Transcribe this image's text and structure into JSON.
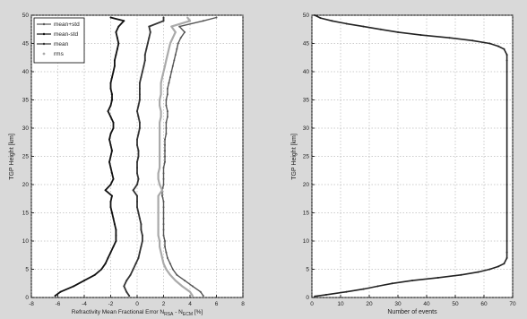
{
  "figure": {
    "background": "#d9d9d9",
    "axes_background": "#ffffff"
  },
  "chart_data": [
    {
      "type": "line",
      "panel": "left",
      "xlabel_main": "Refractivity Mean Fractional Error N",
      "xlabel_sub1": "RSA",
      "xlabel_mid": " - N",
      "xlabel_sub2": "ECM",
      "xlabel_tail": " [%]",
      "ylabel": "TGP Height [km]",
      "xlim": [
        -8,
        8
      ],
      "ylim": [
        0,
        50
      ],
      "xticks": [
        "-8",
        "-6",
        "-4",
        "-2",
        "0",
        "2",
        "4",
        "6",
        "8"
      ],
      "yticks": [
        "0",
        "5",
        "10",
        "15",
        "20",
        "25",
        "30",
        "35",
        "40",
        "45",
        "50"
      ],
      "grid": true,
      "legend_position": "top-left",
      "series": [
        {
          "name": "mean+std",
          "color": "#555555",
          "y": [
            0.3,
            1,
            2,
            3,
            4,
            5,
            6,
            7,
            8,
            9,
            10,
            11,
            12,
            13,
            14,
            15,
            16,
            17,
            18,
            19,
            20,
            21,
            22,
            23,
            24,
            25,
            26,
            27,
            28,
            29,
            30,
            31,
            32,
            33,
            34,
            35,
            36,
            37,
            38,
            39,
            40,
            41,
            42,
            43,
            44,
            45,
            46,
            47,
            48,
            49,
            49.6
          ],
          "x": [
            5.0,
            4.8,
            4.2,
            3.6,
            3.0,
            2.7,
            2.5,
            2.3,
            2.2,
            2.1,
            2.1,
            2.0,
            2.0,
            2.0,
            2.0,
            2.0,
            2.0,
            2.0,
            1.9,
            1.9,
            2.0,
            2.0,
            2.0,
            2.0,
            2.1,
            2.1,
            2.1,
            2.1,
            2.1,
            2.2,
            2.2,
            2.2,
            2.3,
            2.3,
            2.2,
            2.2,
            2.3,
            2.3,
            2.4,
            2.5,
            2.6,
            2.7,
            2.8,
            2.9,
            3.0,
            3.1,
            3.3,
            3.6,
            3.2,
            5.0,
            6.0
          ]
        },
        {
          "name": "mean-std",
          "color": "#111111",
          "y": [
            0.3,
            1,
            2,
            3,
            4,
            5,
            6,
            7,
            8,
            9,
            10,
            11,
            12,
            13,
            14,
            15,
            16,
            17,
            18,
            19,
            20,
            21,
            22,
            23,
            24,
            25,
            26,
            27,
            28,
            29,
            30,
            31,
            32,
            33,
            34,
            35,
            36,
            37,
            38,
            39,
            40,
            41,
            42,
            43,
            44,
            45,
            46,
            47,
            48,
            49,
            49.6
          ],
          "x": [
            -6.2,
            -5.8,
            -4.8,
            -4.0,
            -3.2,
            -2.7,
            -2.4,
            -2.2,
            -2.0,
            -1.8,
            -1.6,
            -1.6,
            -1.6,
            -1.7,
            -1.8,
            -1.9,
            -2.0,
            -2.0,
            -1.9,
            -2.4,
            -2.0,
            -1.8,
            -1.9,
            -2.0,
            -2.1,
            -2.0,
            -1.9,
            -2.0,
            -2.1,
            -2.0,
            -1.8,
            -1.8,
            -2.0,
            -2.2,
            -2.0,
            -1.9,
            -1.9,
            -2.0,
            -2.0,
            -1.9,
            -1.8,
            -1.7,
            -1.7,
            -1.6,
            -1.5,
            -1.4,
            -1.5,
            -1.6,
            -1.4,
            -1.0,
            -2.0
          ]
        },
        {
          "name": "mean",
          "color": "#333333",
          "y": [
            0.3,
            1,
            2,
            3,
            4,
            5,
            6,
            7,
            8,
            9,
            10,
            11,
            12,
            13,
            14,
            15,
            16,
            17,
            18,
            19,
            20,
            21,
            22,
            23,
            24,
            25,
            26,
            27,
            28,
            29,
            30,
            31,
            32,
            33,
            34,
            35,
            36,
            37,
            38,
            39,
            40,
            41,
            42,
            43,
            44,
            45,
            46,
            47,
            48,
            49,
            49.6
          ],
          "x": [
            -0.6,
            -0.8,
            -1.0,
            -0.8,
            -0.5,
            -0.3,
            -0.1,
            0.1,
            0.2,
            0.3,
            0.4,
            0.4,
            0.3,
            0.3,
            0.2,
            0.1,
            0.0,
            0.0,
            0.0,
            -0.3,
            0.0,
            0.1,
            0.0,
            0.0,
            0.0,
            0.1,
            0.1,
            0.0,
            0.0,
            0.1,
            0.2,
            0.2,
            0.1,
            0.0,
            0.1,
            0.2,
            0.2,
            0.2,
            0.2,
            0.3,
            0.4,
            0.5,
            0.6,
            0.6,
            0.7,
            0.8,
            0.9,
            1.0,
            0.9,
            2.0,
            2.0
          ]
        },
        {
          "name": "rms",
          "color": "#aaaaaa",
          "y": [
            0.3,
            1,
            2,
            3,
            4,
            5,
            6,
            7,
            8,
            9,
            10,
            11,
            12,
            13,
            14,
            15,
            16,
            17,
            18,
            19,
            20,
            21,
            22,
            23,
            24,
            25,
            26,
            27,
            28,
            29,
            30,
            31,
            32,
            33,
            34,
            35,
            36,
            37,
            38,
            39,
            40,
            41,
            42,
            43,
            44,
            45,
            46,
            47,
            48,
            49,
            49.6
          ],
          "x": [
            4.2,
            4.0,
            3.4,
            2.9,
            2.5,
            2.2,
            2.0,
            1.9,
            1.8,
            1.7,
            1.7,
            1.6,
            1.6,
            1.6,
            1.6,
            1.6,
            1.6,
            1.6,
            1.6,
            1.9,
            1.7,
            1.6,
            1.6,
            1.7,
            1.7,
            1.7,
            1.7,
            1.7,
            1.7,
            1.7,
            1.7,
            1.7,
            1.8,
            1.8,
            1.7,
            1.7,
            1.8,
            1.8,
            1.8,
            1.9,
            2.0,
            2.1,
            2.2,
            2.3,
            2.4,
            2.5,
            2.7,
            2.9,
            2.6,
            4.0,
            3.8
          ]
        }
      ]
    },
    {
      "type": "line",
      "panel": "right",
      "xlabel": "Number of events",
      "ylabel": "TGP Height [km]",
      "xlim": [
        0,
        70
      ],
      "ylim": [
        0,
        50
      ],
      "xticks": [
        "0",
        "10",
        "20",
        "30",
        "40",
        "50",
        "60",
        "70"
      ],
      "yticks": [
        "0",
        "5",
        "10",
        "15",
        "20",
        "25",
        "30",
        "35",
        "40",
        "45",
        "50"
      ],
      "grid": true,
      "series": [
        {
          "color": "#222222",
          "y": [
            0.2,
            0.5,
            1,
            1.5,
            2,
            2.5,
            3,
            3.5,
            4,
            4.5,
            5,
            5.5,
            6,
            7,
            8,
            10,
            15,
            20,
            25,
            30,
            35,
            40,
            42,
            43,
            44,
            44.5,
            45,
            45.5,
            46,
            46.5,
            47,
            47.5,
            48,
            48.5,
            49,
            49.5,
            50
          ],
          "x": [
            1,
            5,
            12,
            18,
            23,
            28,
            35,
            44,
            52,
            58,
            62,
            65,
            67,
            68,
            68,
            68,
            68,
            68,
            68,
            68,
            68,
            68,
            68,
            68,
            67,
            65,
            62,
            56,
            48,
            38,
            30,
            24,
            18,
            12,
            7,
            3,
            1
          ]
        }
      ]
    }
  ]
}
